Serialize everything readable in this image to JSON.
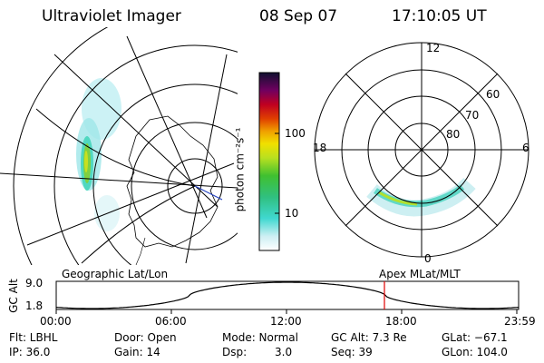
{
  "header": {
    "instrument": "Ultraviolet Imager",
    "date": "08 Sep 07",
    "time": "17:10:05 UT"
  },
  "colorbar": {
    "unit_label": "photon cm⁻²s⁻¹",
    "ticks": [
      "100",
      "10"
    ]
  },
  "polar_plot": {
    "mlt_labels": [
      "12",
      "18",
      "6",
      "0"
    ],
    "lat_labels": [
      "60",
      "70",
      "80"
    ]
  },
  "timeline": {
    "left_title": "Geographic Lat/Lon",
    "right_title": "Apex MLat/MLT",
    "y_label": "GC Alt",
    "y_ticks": [
      "9.0",
      "1.8"
    ],
    "x_ticks": [
      "00:00",
      "06:00",
      "12:00",
      "18:00",
      "23:59"
    ],
    "marker_color": "#e00000"
  },
  "info": {
    "filter": "Flt: LBHL",
    "ip": "IP: 36.0",
    "door": "Door: Open",
    "gain": "Gain: 14",
    "mode": "Mode: Normal",
    "dsp_label": "Dsp:",
    "dsp_value": "3.0",
    "gc_alt": "GC Alt: 7.3 Re",
    "seq": "Seq: 39",
    "glat": "GLat: −67.1",
    "glon": "GLon: 104.0"
  }
}
